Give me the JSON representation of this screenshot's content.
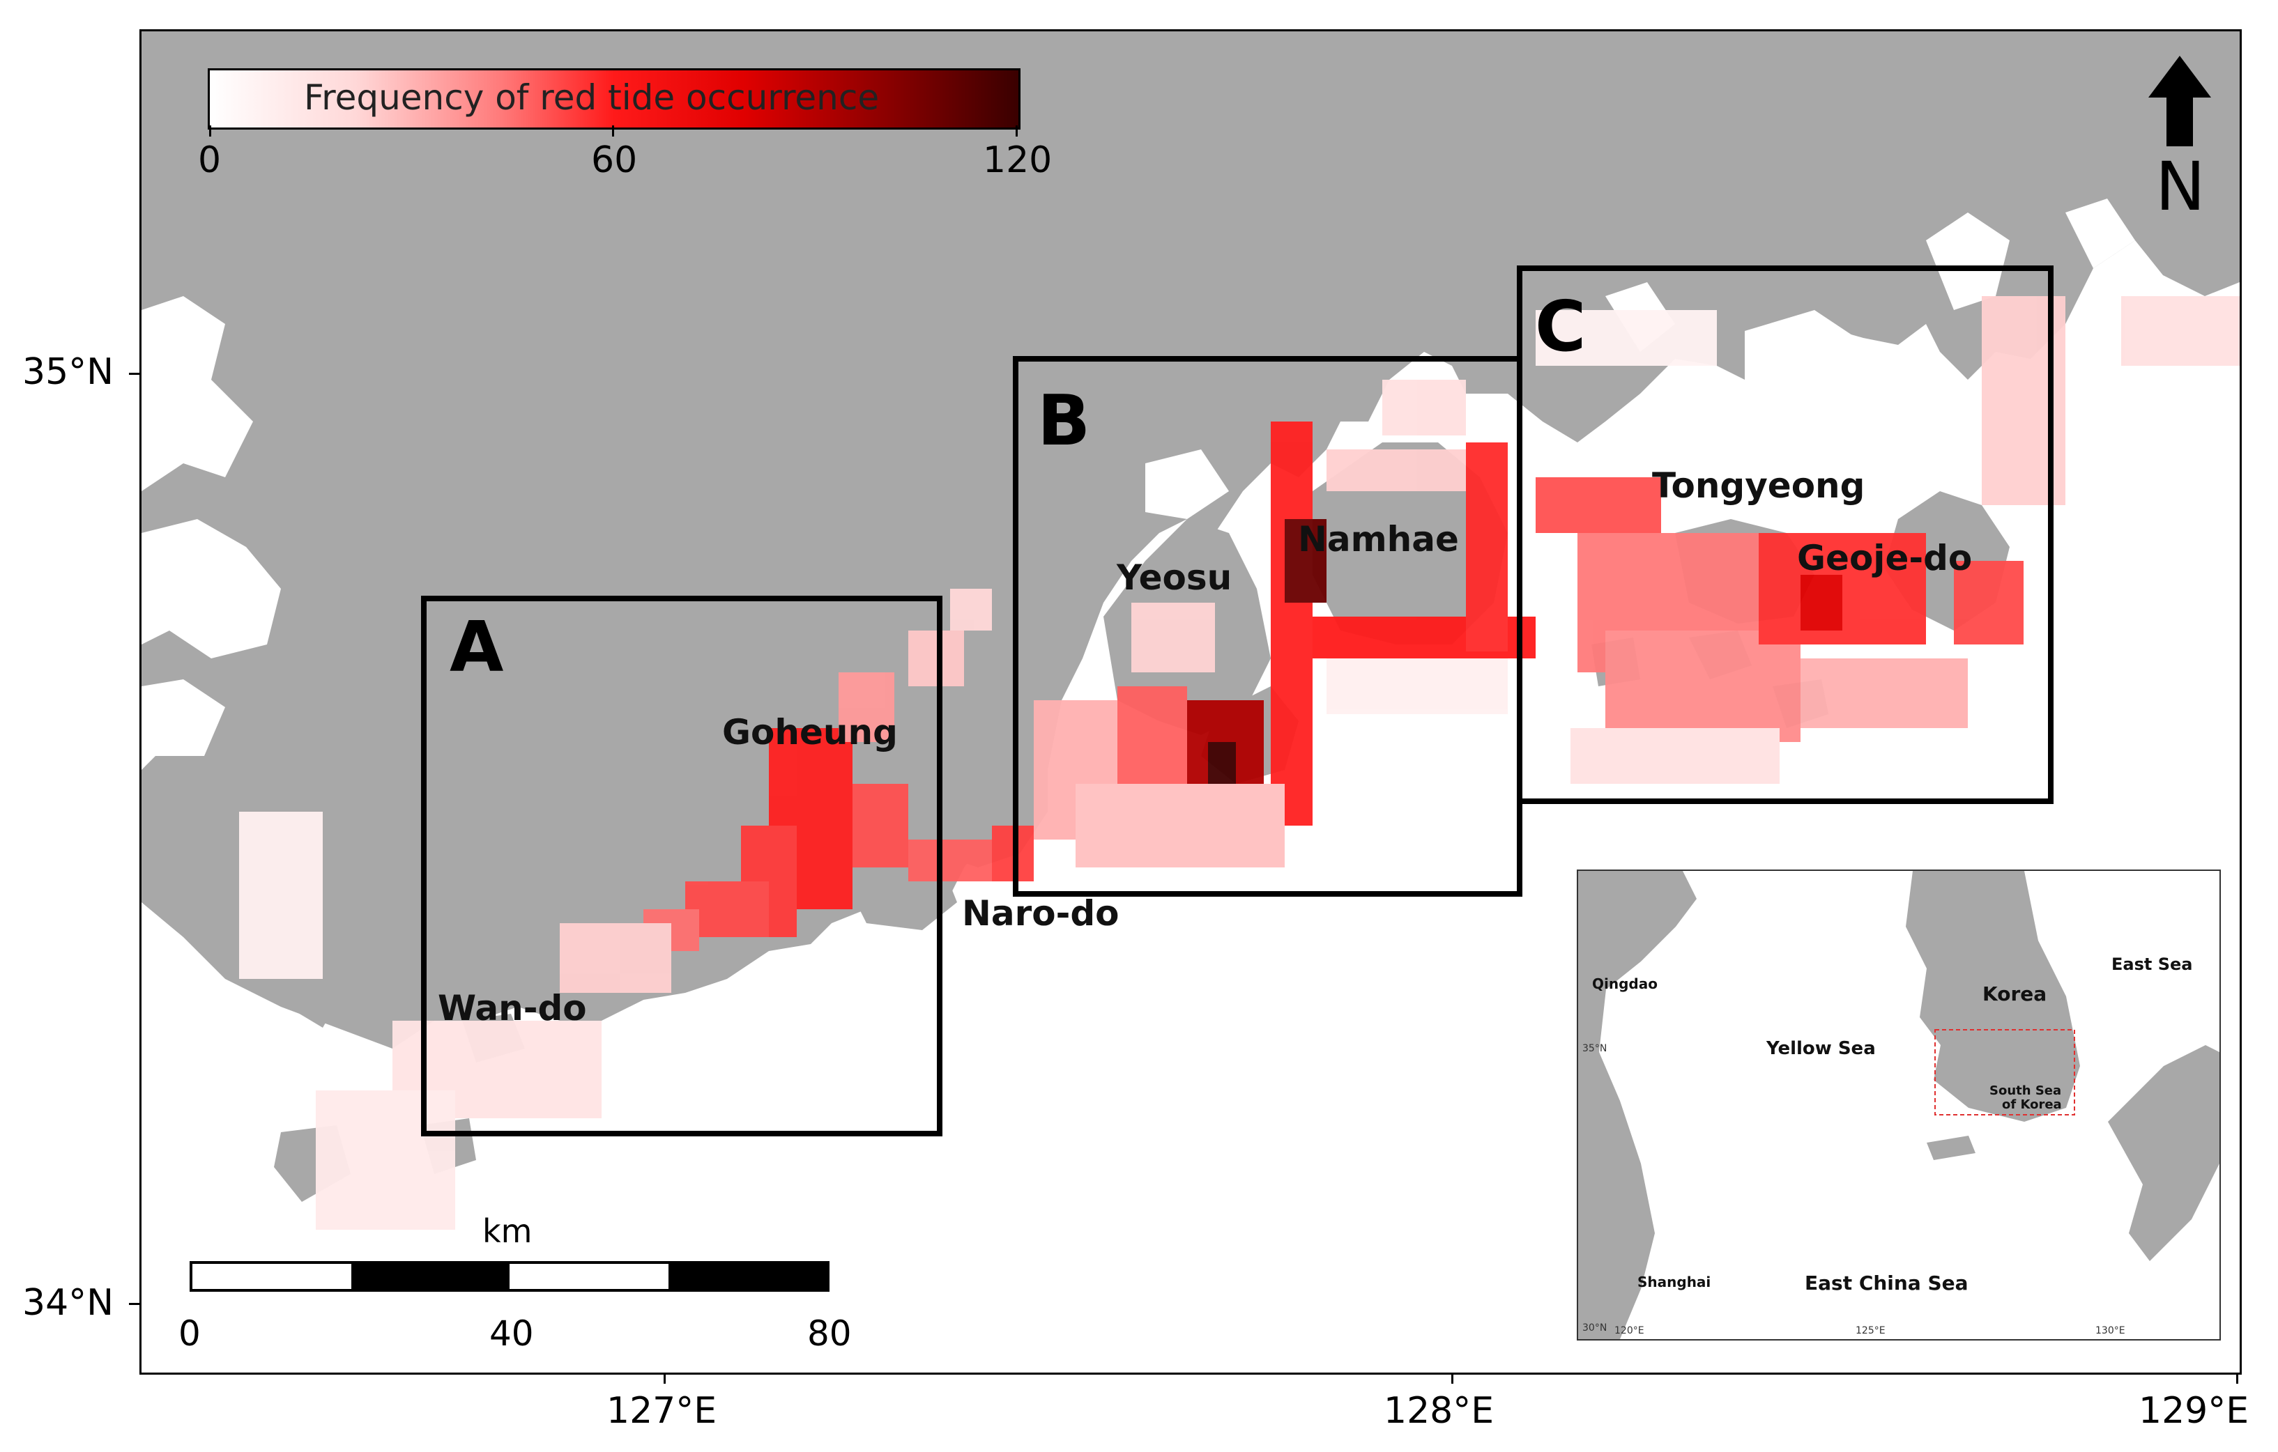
{
  "colorbar": {
    "title": "Frequency of red tide occurrence",
    "ticks": [
      "0",
      "60",
      "120"
    ],
    "min": 0,
    "max": 120,
    "colors": [
      "#ffffff",
      "#ff7a7a",
      "#ff1a1a",
      "#8a0000",
      "#3a0000"
    ]
  },
  "north_arrow": {
    "letter": "N"
  },
  "axes": {
    "lat_labels": [
      "35°N",
      "34°N"
    ],
    "lon_labels": [
      "127°E",
      "128°E",
      "129°E"
    ]
  },
  "boxes": [
    {
      "letter": "A"
    },
    {
      "letter": "B"
    },
    {
      "letter": "C"
    }
  ],
  "places": {
    "goheung": "Goheung",
    "wando": "Wan-do",
    "yeosu": "Yeosu",
    "namhae": "Namhae",
    "narodo": "Naro-do",
    "tongyeong": "Tongyeong",
    "geojedo": "Geoje-do"
  },
  "scalebar": {
    "unit": "km",
    "ticks": [
      "0",
      "40",
      "80"
    ]
  },
  "inset": {
    "labels": {
      "qingdao": "Qingdao",
      "east_sea": "East Sea",
      "korea": "Korea",
      "yellow_sea": "Yellow Sea",
      "south_sea": "South Sea",
      "of_korea": "of Korea",
      "shanghai": "Shanghai",
      "east_china_sea": "East China Sea"
    },
    "lat_ticks": [
      "35°N",
      "30°N"
    ],
    "lon_ticks": [
      "120°E",
      "125°E",
      "130°E"
    ],
    "study_area_color": "#e03030"
  },
  "colors": {
    "land": "#a8a8a8",
    "sea": "#ffffff",
    "box_border": "#000000"
  }
}
